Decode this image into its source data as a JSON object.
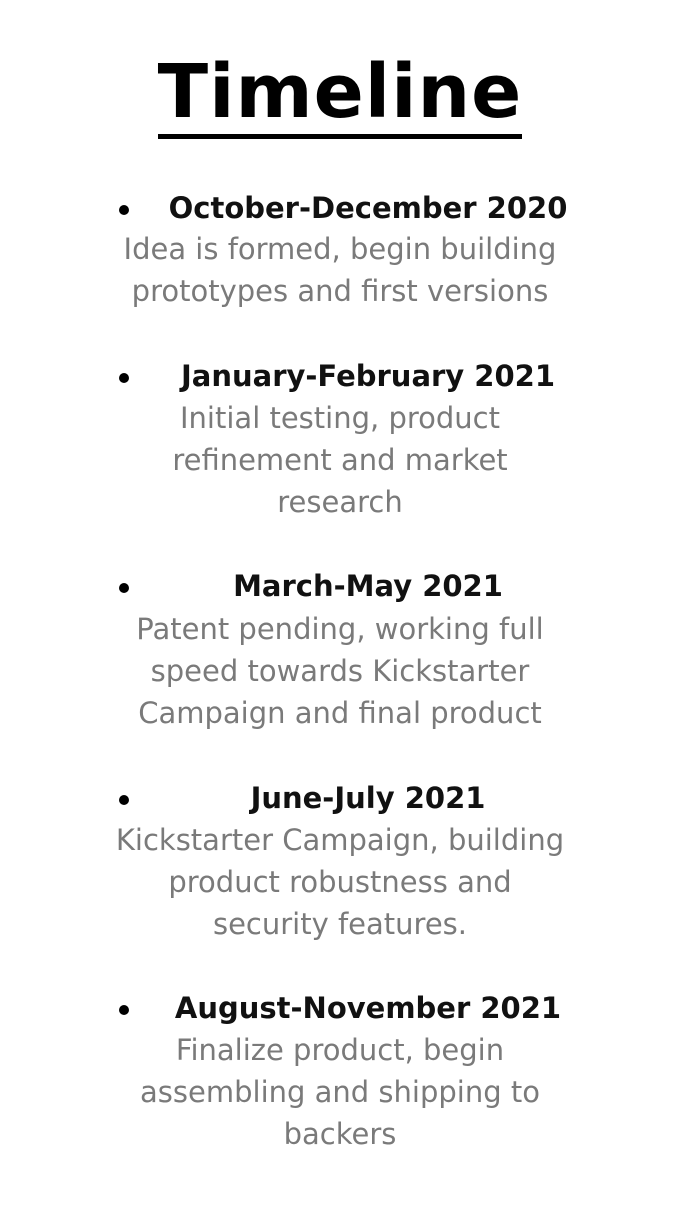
{
  "title": "Timeline",
  "entries": [
    {
      "period": "October-December 2020",
      "lines": [
        "Idea is formed, begin building",
        "prototypes and first versions"
      ]
    },
    {
      "period": "January-February 2021",
      "lines": [
        "Initial testing, product",
        "refinement and market",
        "research"
      ]
    },
    {
      "period": "March-May 2021",
      "lines": [
        "Patent pending, working full",
        "speed towards Kickstarter",
        "Campaign and final product"
      ]
    },
    {
      "period": "June-July 2021",
      "lines": [
        "Kickstarter Campaign, building",
        "product robustness and",
        "security features."
      ]
    },
    {
      "period": "August-November 2021",
      "lines": [
        "Finalize product, begin",
        "assembling and shipping to",
        "backers"
      ]
    }
  ]
}
